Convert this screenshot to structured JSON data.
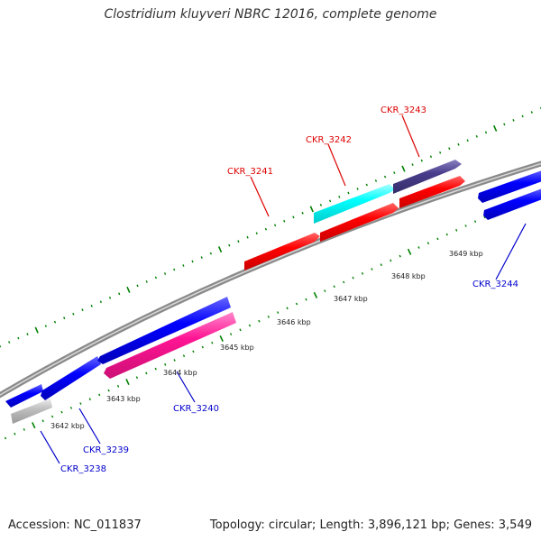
{
  "title": "Clostridium kluyveri NBRC 12016, complete genome",
  "footer": {
    "accession": "Accession: NC_011837",
    "summary": "Topology: circular; Length: 3,896,121 bp; Genes: 3,549"
  },
  "colors": {
    "forward_label": "#dd0000",
    "reverse_label": "#0000cc",
    "tick": "#008000",
    "backbone": "#8a8a8a"
  },
  "scale_labels": [
    "3642 kbp",
    "3643 kbp",
    "3644 kbp",
    "3645 kbp",
    "3646 kbp",
    "3647 kbp",
    "3648 kbp",
    "3649 kbp"
  ],
  "genes": [
    {
      "id": "CKR_3241",
      "strand": "+",
      "color": "#ff0000"
    },
    {
      "id": "CKR_3242",
      "strand": "+",
      "color": "#00ffff"
    },
    {
      "id": "CKR_3243",
      "strand": "+",
      "color": "#483d8b"
    },
    {
      "id": "CKR_3238",
      "strand": "-",
      "color": "#c0c0c0"
    },
    {
      "id": "CKR_3239",
      "strand": "-",
      "color": "#0000ff"
    },
    {
      "id": "CKR_3240",
      "strand": "-",
      "color": "#ff1493"
    },
    {
      "id": "CKR_3244",
      "strand": "-",
      "color": "#0000ff"
    }
  ]
}
